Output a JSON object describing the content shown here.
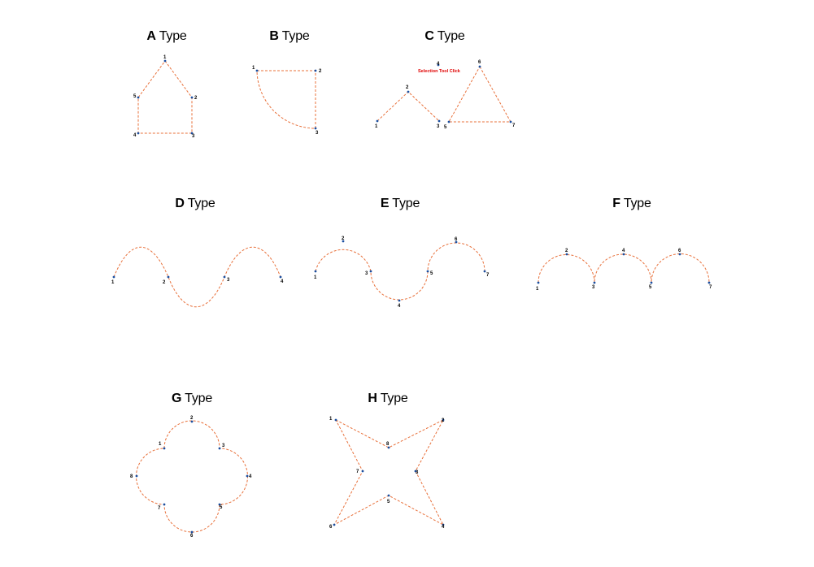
{
  "titles": {
    "a": {
      "letter": "A",
      "rest": " Type"
    },
    "b": {
      "letter": "B",
      "rest": " Type"
    },
    "c": {
      "letter": "C",
      "rest": " Type"
    },
    "d": {
      "letter": "D",
      "rest": " Type"
    },
    "e": {
      "letter": "E",
      "rest": " Type"
    },
    "f": {
      "letter": "F",
      "rest": " Type"
    },
    "g": {
      "letter": "G",
      "rest": " Type"
    },
    "h": {
      "letter": "H",
      "rest": " Type"
    }
  },
  "annotation": "Selection Tool Click",
  "colors": {
    "path": "#e8703a",
    "point": "#1b4fa0",
    "annotation": "#e00000"
  },
  "point_labels": {
    "a": [
      "1",
      "2",
      "3",
      "4",
      "5"
    ],
    "b": [
      "1",
      "2",
      "3"
    ],
    "c": [
      "1",
      "2",
      "3",
      "4",
      "5",
      "6",
      "7"
    ],
    "d": [
      "1",
      "2",
      "3",
      "4"
    ],
    "e": [
      "1",
      "2",
      "3",
      "4",
      "5",
      "6",
      "7"
    ],
    "f": [
      "1",
      "2",
      "3",
      "4",
      "5",
      "6",
      "7"
    ],
    "g": [
      "1",
      "2",
      "3",
      "4",
      "5",
      "6",
      "7",
      "8"
    ],
    "h": [
      "1",
      "2",
      "3",
      "4",
      "5",
      "6",
      "7",
      "8"
    ]
  }
}
